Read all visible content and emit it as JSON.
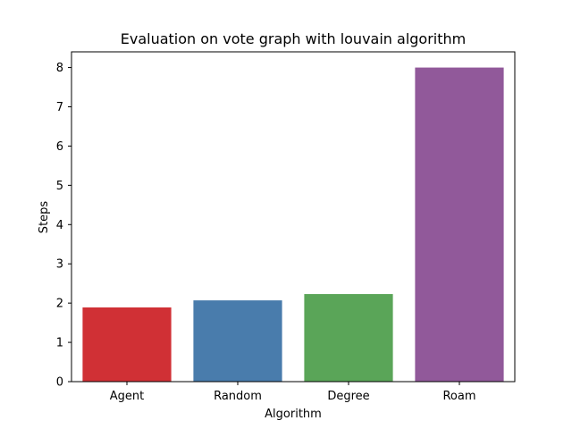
{
  "chart_data": {
    "type": "bar",
    "title": "Evaluation on vote graph with louvain algorithm",
    "xlabel": "Algorithm",
    "ylabel": "Steps",
    "categories": [
      "Agent",
      "Random",
      "Degree",
      "Roam"
    ],
    "values": [
      1.89,
      2.07,
      2.23,
      8.0
    ],
    "colors": [
      "#d03035",
      "#497cac",
      "#5aa558",
      "#91599a"
    ],
    "ylim": [
      0,
      8.4
    ],
    "yticks": [
      0,
      1,
      2,
      3,
      4,
      5,
      6,
      7,
      8
    ],
    "grid": false,
    "legend": "none"
  }
}
